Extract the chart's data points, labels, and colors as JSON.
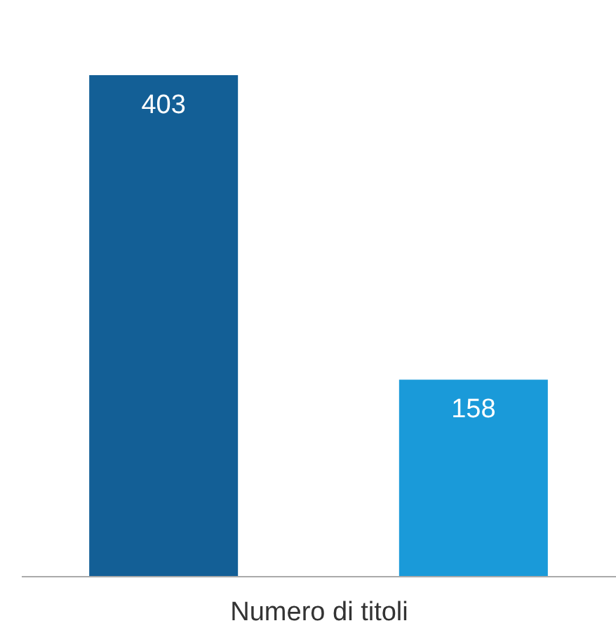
{
  "chart_data": {
    "type": "bar",
    "categories": [
      null,
      null
    ],
    "values": [
      403,
      158
    ],
    "colors": [
      "#135f96",
      "#1a9ad9"
    ],
    "data_labels": true,
    "xlabel": "Numero di titoli"
  }
}
